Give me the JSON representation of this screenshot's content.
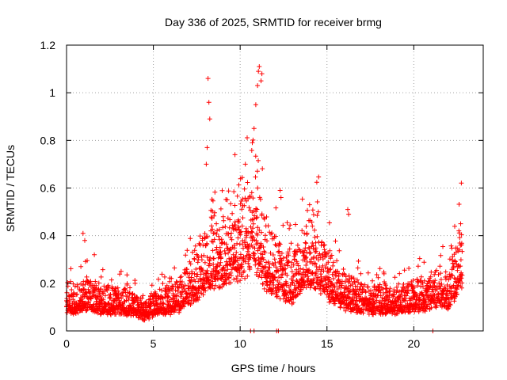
{
  "chart_data": {
    "type": "scatter",
    "title": "Day 336 of 2025, SRMTID for receiver brmg",
    "xlabel": "GPS time / hours",
    "ylabel": "SRMTID / TECUs",
    "xlim": [
      0,
      24
    ],
    "ylim": [
      0,
      1.2
    ],
    "xticks": [
      0,
      5,
      10,
      15,
      20
    ],
    "yticks": [
      0,
      0.2,
      0.4,
      0.6,
      0.8,
      1.0,
      1.2
    ],
    "xtick_labels": [
      "0",
      "5",
      "10",
      "15",
      "20"
    ],
    "ytick_labels": [
      "0",
      "0.2",
      "0.4",
      "0.6",
      "0.8",
      "1",
      "1.2"
    ],
    "grid": true,
    "marker": "+",
    "color": "#ff0000",
    "series": [
      {
        "name": "SRMTID",
        "profile": [
          [
            0.0,
            0.13
          ],
          [
            0.5,
            0.12
          ],
          [
            1.0,
            0.14
          ],
          [
            1.5,
            0.13
          ],
          [
            2.0,
            0.12
          ],
          [
            2.5,
            0.12
          ],
          [
            3.0,
            0.12
          ],
          [
            3.5,
            0.11
          ],
          [
            4.0,
            0.1
          ],
          [
            4.5,
            0.08
          ],
          [
            5.0,
            0.1
          ],
          [
            5.5,
            0.11
          ],
          [
            6.0,
            0.12
          ],
          [
            6.5,
            0.14
          ],
          [
            7.0,
            0.18
          ],
          [
            7.5,
            0.22
          ],
          [
            8.0,
            0.28
          ],
          [
            8.5,
            0.32
          ],
          [
            9.0,
            0.3
          ],
          [
            9.5,
            0.32
          ],
          [
            10.0,
            0.36
          ],
          [
            10.5,
            0.42
          ],
          [
            11.0,
            0.4
          ],
          [
            11.5,
            0.3
          ],
          [
            12.0,
            0.25
          ],
          [
            12.5,
            0.22
          ],
          [
            13.0,
            0.2
          ],
          [
            13.5,
            0.25
          ],
          [
            14.0,
            0.32
          ],
          [
            14.5,
            0.3
          ],
          [
            15.0,
            0.22
          ],
          [
            15.5,
            0.18
          ],
          [
            16.0,
            0.15
          ],
          [
            16.5,
            0.14
          ],
          [
            17.0,
            0.13
          ],
          [
            17.5,
            0.12
          ],
          [
            18.0,
            0.12
          ],
          [
            18.5,
            0.12
          ],
          [
            19.0,
            0.12
          ],
          [
            19.5,
            0.13
          ],
          [
            20.0,
            0.14
          ],
          [
            20.5,
            0.14
          ],
          [
            21.0,
            0.15
          ],
          [
            21.5,
            0.18
          ],
          [
            22.0,
            0.15
          ],
          [
            22.5,
            0.24
          ],
          [
            22.8,
            0.3
          ]
        ],
        "spikes": [
          [
            0.95,
            0.41
          ],
          [
            1.05,
            0.38
          ],
          [
            1.6,
            0.32
          ],
          [
            8.15,
            1.06
          ],
          [
            8.2,
            0.96
          ],
          [
            8.25,
            0.89
          ],
          [
            8.1,
            0.77
          ],
          [
            8.05,
            0.7
          ],
          [
            9.7,
            0.74
          ],
          [
            10.3,
            0.7
          ],
          [
            10.7,
            0.79
          ],
          [
            10.8,
            0.85
          ],
          [
            10.9,
            0.95
          ],
          [
            11.0,
            1.03
          ],
          [
            11.05,
            1.09
          ],
          [
            11.1,
            1.11
          ],
          [
            11.25,
            1.08
          ],
          [
            11.2,
            1.05
          ],
          [
            12.3,
            0.59
          ],
          [
            12.35,
            0.56
          ],
          [
            14.0,
            0.53
          ],
          [
            14.5,
            0.5
          ],
          [
            16.2,
            0.51
          ],
          [
            16.25,
            0.49
          ],
          [
            22.7,
            0.45
          ],
          [
            22.6,
            0.42
          ]
        ],
        "zero_points": [
          10.6,
          10.8,
          12.1,
          12.2,
          21.1
        ]
      }
    ]
  }
}
